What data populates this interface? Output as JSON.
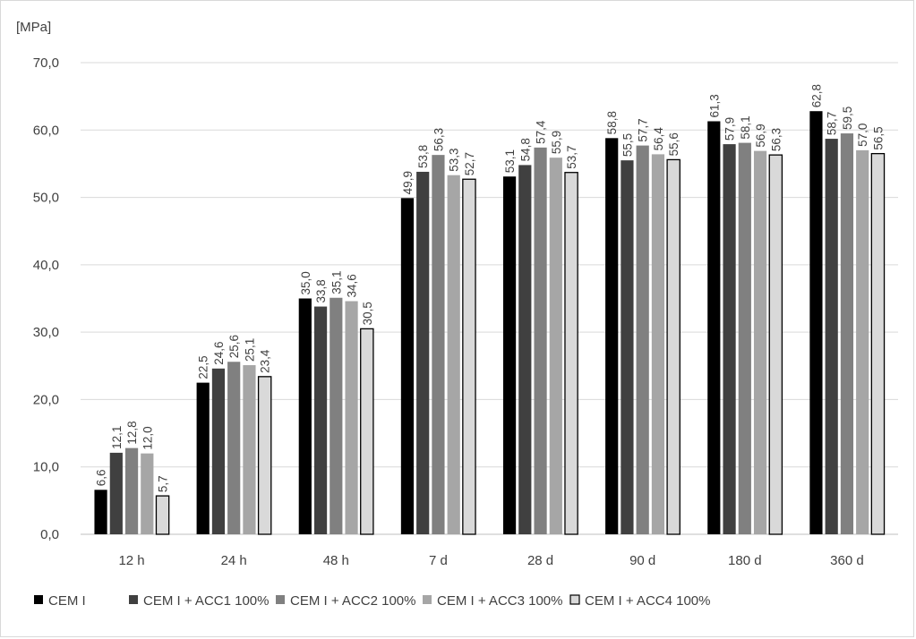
{
  "chart_data": {
    "type": "bar",
    "ylabel": "[MPa]",
    "ylim": [
      0,
      70
    ],
    "yticks": [
      "0,0",
      "10,0",
      "20,0",
      "30,0",
      "40,0",
      "50,0",
      "60,0",
      "70,0"
    ],
    "categories": [
      "12 h",
      "24 h",
      "48 h",
      "7 d",
      "28 d",
      "90 d",
      "180 d",
      "360 d"
    ],
    "grid": "horizontal",
    "legend_position": "bottom",
    "series": [
      {
        "name": "CEM I",
        "color": "#000000",
        "values": [
          6.6,
          22.5,
          35.0,
          49.9,
          53.1,
          58.8,
          61.3,
          62.8
        ],
        "labels": [
          "6,6",
          "22,5",
          "35,0",
          "49,9",
          "53,1",
          "58,8",
          "61,3",
          "62,8"
        ]
      },
      {
        "name": "CEM I + ACC1 100%",
        "color": "#404040",
        "values": [
          12.1,
          24.6,
          33.8,
          53.8,
          54.8,
          55.5,
          57.9,
          58.7
        ],
        "labels": [
          "12,1",
          "24,6",
          "33,8",
          "53,8",
          "54,8",
          "55,5",
          "57,9",
          "58,7"
        ]
      },
      {
        "name": "CEM I + ACC2 100%",
        "color": "#808080",
        "values": [
          12.8,
          25.6,
          35.1,
          56.3,
          57.4,
          57.7,
          58.1,
          59.5
        ],
        "labels": [
          "12,8",
          "25,6",
          "35,1",
          "56,3",
          "57,4",
          "57,7",
          "58,1",
          "59,5"
        ]
      },
      {
        "name": "CEM I + ACC3 100%",
        "color": "#a6a6a6",
        "values": [
          12.0,
          25.1,
          34.6,
          53.3,
          55.9,
          56.4,
          56.9,
          57.0
        ],
        "labels": [
          "12,0",
          "25,1",
          "34,6",
          "53,3",
          "55,9",
          "56,4",
          "56,9",
          "57,0"
        ]
      },
      {
        "name": "CEM I + ACC4 100%",
        "color": "#d9d9d9",
        "outline": "#000000",
        "values": [
          5.7,
          23.4,
          30.5,
          52.7,
          53.7,
          55.6,
          56.3,
          56.5
        ],
        "labels": [
          "5,7",
          "23,4",
          "30,5",
          "52,7",
          "53,7",
          "55,6",
          "56,3",
          "56,5"
        ]
      }
    ]
  }
}
